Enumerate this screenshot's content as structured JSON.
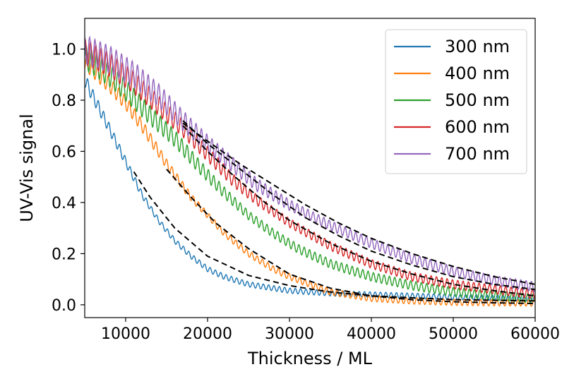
{
  "chart_data": {
    "type": "line",
    "title": "",
    "xlabel": "Thickness / ML",
    "ylabel": "UV-Vis signal",
    "xlim": [
      5000,
      60000
    ],
    "ylim": [
      -0.05,
      1.12
    ],
    "xticks": [
      10000,
      20000,
      30000,
      40000,
      50000,
      60000
    ],
    "yticks": [
      0.0,
      0.2,
      0.4,
      0.6,
      0.8,
      1.0
    ],
    "xtick_labels": [
      "10000",
      "20000",
      "30000",
      "40000",
      "50000",
      "60000"
    ],
    "ytick_labels": [
      "0.0",
      "0.2",
      "0.4",
      "0.6",
      "0.8",
      "1.0"
    ],
    "grid": false,
    "legend_position": "top-right",
    "series": [
      {
        "name": "300 nm",
        "color": "#1f77b4",
        "x": [
          5000,
          8000,
          10000,
          12000,
          14000,
          16000,
          18000,
          20000,
          22000,
          25000,
          30000,
          35000,
          40000,
          45000,
          50000,
          55000,
          60000
        ],
        "y": [
          0.88,
          0.69,
          0.56,
          0.43,
          0.33,
          0.25,
          0.19,
          0.14,
          0.11,
          0.08,
          0.055,
          0.045,
          0.04,
          0.035,
          0.03,
          0.028,
          0.025
        ],
        "oscillation_amplitude": 0.03
      },
      {
        "name": "400 nm",
        "color": "#ff7f0e",
        "x": [
          5000,
          8000,
          10000,
          12000,
          15000,
          18000,
          20000,
          22000,
          25000,
          28000,
          30000,
          35000,
          40000,
          45000,
          50000,
          55000,
          60000
        ],
        "y": [
          0.95,
          0.86,
          0.79,
          0.7,
          0.55,
          0.42,
          0.35,
          0.28,
          0.2,
          0.14,
          0.11,
          0.05,
          0.025,
          0.015,
          0.01,
          0.008,
          0.007
        ],
        "oscillation_amplitude": 0.035
      },
      {
        "name": "500 nm",
        "color": "#2ca02c",
        "x": [
          5000,
          8000,
          10000,
          13000,
          16000,
          19000,
          22000,
          25000,
          28000,
          31000,
          35000,
          40000,
          45000,
          50000,
          55000,
          60000
        ],
        "y": [
          0.97,
          0.9,
          0.84,
          0.74,
          0.65,
          0.54,
          0.44,
          0.35,
          0.28,
          0.22,
          0.16,
          0.11,
          0.075,
          0.05,
          0.035,
          0.025
        ],
        "oscillation_amplitude": 0.05
      },
      {
        "name": "600 nm",
        "color": "#d62728",
        "x": [
          5000,
          8000,
          11000,
          14000,
          17000,
          20000,
          23000,
          26000,
          30000,
          35000,
          40000,
          45000,
          50000,
          55000,
          60000
        ],
        "y": [
          0.99,
          0.94,
          0.87,
          0.78,
          0.69,
          0.59,
          0.49,
          0.41,
          0.32,
          0.23,
          0.16,
          0.11,
          0.08,
          0.06,
          0.04
        ],
        "oscillation_amplitude": 0.05
      },
      {
        "name": "700 nm",
        "color": "#9467bd",
        "x": [
          5000,
          8000,
          11000,
          14000,
          17000,
          20000,
          23000,
          26000,
          30000,
          35000,
          40000,
          45000,
          50000,
          55000,
          60000
        ],
        "y": [
          1.0,
          0.96,
          0.9,
          0.82,
          0.72,
          0.63,
          0.55,
          0.47,
          0.39,
          0.31,
          0.24,
          0.18,
          0.13,
          0.095,
          0.07
        ],
        "oscillation_amplitude": 0.055
      }
    ],
    "fits": [
      {
        "x": [
          11000,
          13000,
          16000,
          20000,
          25000,
          30000,
          35000,
          40000,
          50000,
          60000
        ],
        "y": [
          0.52,
          0.42,
          0.3,
          0.19,
          0.115,
          0.075,
          0.05,
          0.035,
          0.02,
          0.015
        ]
      },
      {
        "x": [
          15000,
          18000,
          21000,
          25000,
          30000,
          35000,
          40000,
          45000,
          50000,
          55000,
          60000
        ],
        "y": [
          0.53,
          0.42,
          0.32,
          0.22,
          0.12,
          0.065,
          0.035,
          0.02,
          0.012,
          0.008,
          0.005
        ]
      },
      {
        "x": [
          17000,
          20000,
          23000,
          27000,
          30000,
          35000,
          40000,
          45000,
          50000,
          55000,
          60000
        ],
        "y": [
          0.7,
          0.6,
          0.51,
          0.4,
          0.33,
          0.24,
          0.17,
          0.12,
          0.08,
          0.055,
          0.035
        ]
      },
      {
        "x": [
          17000,
          20000,
          24000,
          28000,
          32000,
          36000,
          40000,
          45000,
          50000,
          55000,
          60000
        ],
        "y": [
          0.72,
          0.63,
          0.53,
          0.43,
          0.34,
          0.27,
          0.21,
          0.155,
          0.11,
          0.08,
          0.06
        ]
      },
      {
        "x": [
          17000,
          20000,
          24000,
          28000,
          32000,
          36000,
          40000,
          45000,
          50000,
          55000,
          60000
        ],
        "y": [
          0.71,
          0.64,
          0.55,
          0.47,
          0.39,
          0.32,
          0.26,
          0.2,
          0.15,
          0.11,
          0.08
        ]
      }
    ],
    "fit_style": {
      "color": "#000000",
      "dash": "dashed"
    }
  }
}
